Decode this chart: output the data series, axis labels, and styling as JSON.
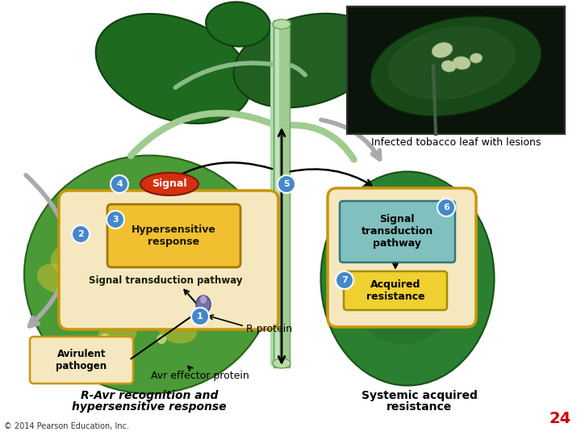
{
  "bg_color": "#ffffff",
  "page_number": "24",
  "copyright": "© 2014 Pearson Education, Inc.",
  "left_leaf_color": "#4a9e3a",
  "left_leaf_yellow": "#c8b830",
  "right_leaf_color": "#2e8030",
  "inner_box_fill": "#f5e8c0",
  "inner_box_edge": "#c8960a",
  "hyper_box_fill": "#f0c030",
  "hyper_box_edge": "#b08000",
  "sig_tduct_fill": "#80c0c0",
  "sig_tduct_edge": "#309090",
  "acq_box_fill": "#f0d040",
  "acq_box_edge": "#b09000",
  "signal_ellipse_fill": "#d43010",
  "signal_ellipse_edge": "#901000",
  "circle_fill": "#4488cc",
  "circle_edge": "#ffffff",
  "stem_color": "#88cc88",
  "arrow_color": "#111111",
  "gray_arrow": "#999999",
  "photo_bg": "#0a180a",
  "photo_leaf": "#1a5020",
  "photo_lesion": "#c8d8b8",
  "avirulent_fill": "#f5e8c0",
  "avirulent_edge": "#c8960a",
  "pathogen_fill": "#7070b0",
  "labels": {
    "signal": "Signal",
    "hypersensitive": "Hypersensitive\nresponse",
    "sig_trans_left": "Signal transduction pathway",
    "r_protein": "R protein",
    "avirulent": "Avirulent\npathogen",
    "avr_effector": "Avr effector protein",
    "sig_trans_right": "Signal\ntransduction\npathway",
    "acquired": "Acquired\nresistance",
    "caption": "Infected tobacco leaf with lesions",
    "bottom_left_1": "R-Avr recognition and",
    "bottom_left_2": "hypersensitive response",
    "bottom_right_1": "Systemic acquired",
    "bottom_right_2": "resistance"
  }
}
